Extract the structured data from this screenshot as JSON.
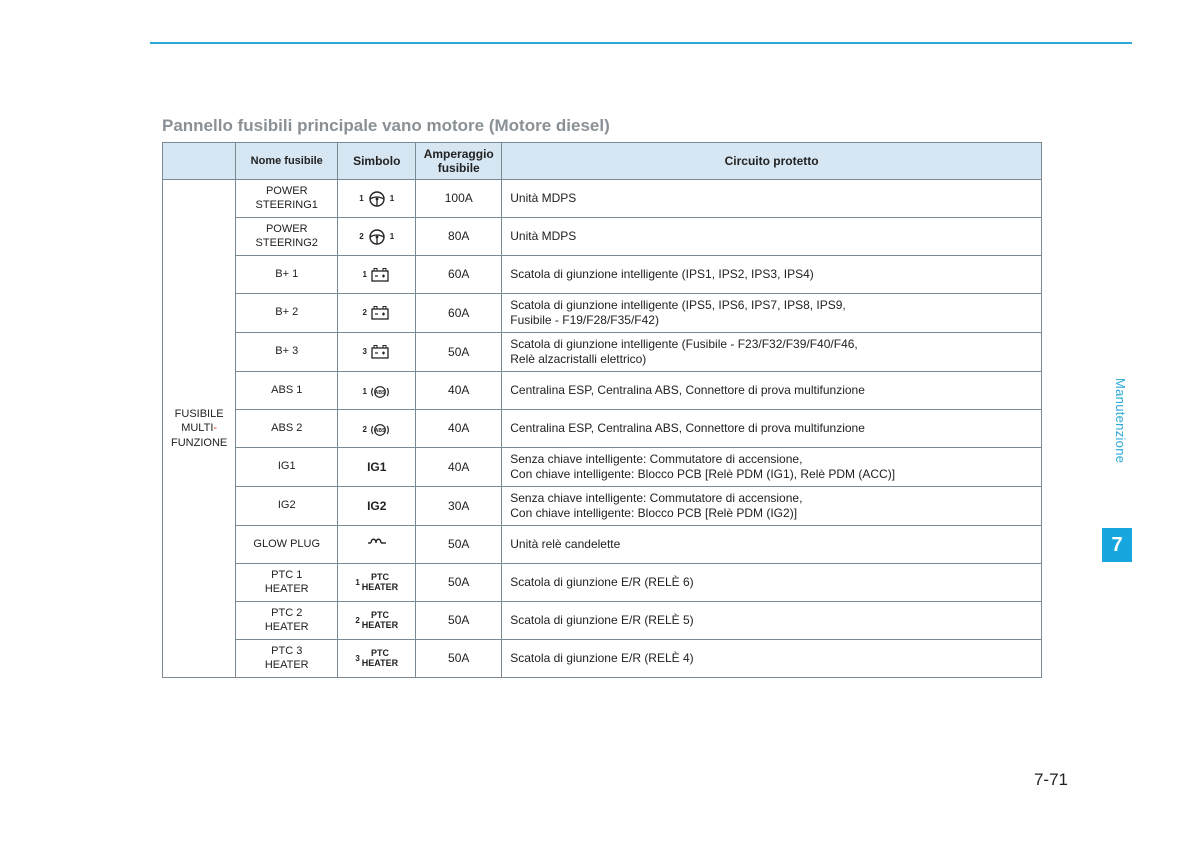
{
  "title": "Pannello fusibili principale vano motore (Motore diesel)",
  "columns": {
    "cat": "",
    "name": "Nome fusibile",
    "symbol": "Simbolo",
    "amp": "Amperaggio fusibile",
    "circuit": "Circuito protetto"
  },
  "category": {
    "line1": "FUSIBILE",
    "line2a": "MULTI",
    "line2b": "-",
    "line3": "FUNZIONE"
  },
  "rows": [
    {
      "name": "POWER STEERING1",
      "sym_pre": "1",
      "sym_post": "1",
      "sym_kind": "steering",
      "amp": "100A",
      "circuit": "Unità MDPS"
    },
    {
      "name": "POWER STEERING2",
      "sym_pre": "2",
      "sym_post": "1",
      "sym_kind": "steering",
      "amp": "80A",
      "circuit": "Unità MDPS"
    },
    {
      "name": "B+ 1",
      "sym_pre": "1",
      "sym_kind": "battery",
      "amp": "60A",
      "circuit": "Scatola di giunzione intelligente (IPS1, IPS2, IPS3, IPS4)"
    },
    {
      "name": "B+ 2",
      "sym_pre": "2",
      "sym_kind": "battery",
      "amp": "60A",
      "circuit": "Scatola di giunzione intelligente (IPS5, IPS6, IPS7, IPS8, IPS9,\nFusibile - F19/F28/F35/F42)"
    },
    {
      "name": "B+ 3",
      "sym_pre": "3",
      "sym_kind": "battery",
      "amp": "50A",
      "circuit": "Scatola di giunzione intelligente (Fusibile - F23/F32/F39/F40/F46,\nRelè alzacristalli elettrico)"
    },
    {
      "name": "ABS 1",
      "sym_pre": "1",
      "sym_kind": "abs",
      "amp": "40A",
      "circuit": "Centralina ESP, Centralina ABS, Connettore di prova multifunzione"
    },
    {
      "name": "ABS 2",
      "sym_pre": "2",
      "sym_kind": "abs",
      "amp": "40A",
      "circuit": "Centralina ESP, Centralina ABS, Connettore di prova multifunzione"
    },
    {
      "name": "IG1",
      "sym_text": "IG1",
      "amp": "40A",
      "circuit": "Senza chiave intelligente: Commutatore di accensione,\nCon chiave intelligente: Blocco PCB [Relè PDM (IG1), Relè PDM (ACC)]"
    },
    {
      "name": "IG2",
      "sym_text": "IG2",
      "amp": "30A",
      "circuit": "Senza chiave intelligente: Commutatore di accensione,\nCon chiave intelligente: Blocco PCB [Relè PDM (IG2)]"
    },
    {
      "name": "GLOW PLUG",
      "sym_kind": "glow",
      "amp": "50A",
      "circuit": "Unità relè candelette"
    },
    {
      "name": "PTC 1 HEATER",
      "sym_pre": "1",
      "sym_text": "PTC HEATER",
      "amp": "50A",
      "circuit": "Scatola di giunzione E/R (RELÈ 6)"
    },
    {
      "name": "PTC 2 HEATER",
      "sym_pre": "2",
      "sym_text": "PTC HEATER",
      "amp": "50A",
      "circuit": "Scatola di giunzione E/R (RELÈ 5)"
    },
    {
      "name": "PTC 3 HEATER",
      "sym_pre": "3",
      "sym_text": "PTC HEATER",
      "amp": "50A",
      "circuit": "Scatola di giunzione E/R (RELÈ 4)"
    }
  ],
  "side": {
    "label": "Manutenzione",
    "chapter": "7"
  },
  "page": "7-71"
}
